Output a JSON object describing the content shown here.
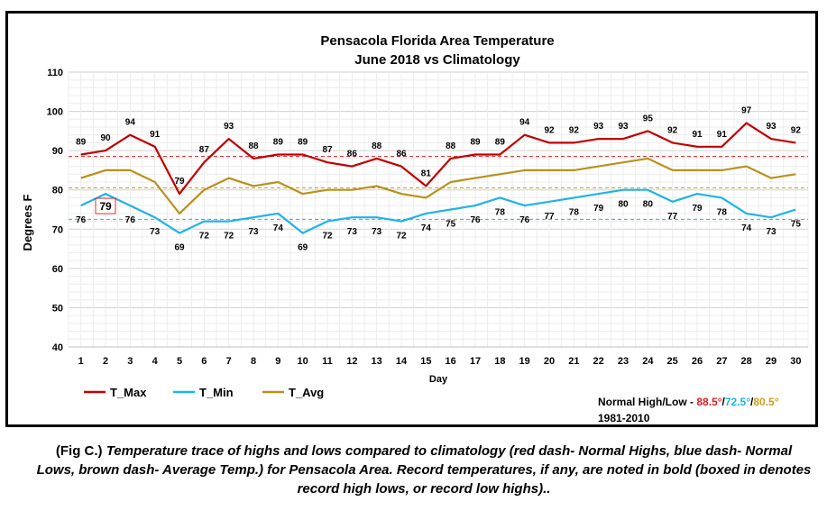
{
  "chart_data": {
    "type": "line",
    "title": [
      "Pensacola Florida Area Temperature",
      "June 2018 vs Climatology"
    ],
    "xlabel": "Day",
    "ylabel": "Degrees F",
    "ylim": [
      40,
      110
    ],
    "yticks": [
      40,
      50,
      60,
      70,
      80,
      90,
      100,
      110
    ],
    "x": [
      1,
      2,
      3,
      4,
      5,
      6,
      7,
      8,
      9,
      10,
      11,
      12,
      13,
      14,
      15,
      16,
      17,
      18,
      19,
      20,
      21,
      22,
      23,
      24,
      25,
      26,
      27,
      28,
      29,
      30
    ],
    "series": [
      {
        "name": "T_Max",
        "color": "#c00000",
        "values": [
          89,
          90,
          94,
          91,
          79,
          87,
          93,
          88,
          89,
          89,
          87,
          86,
          88,
          86,
          81,
          88,
          89,
          89,
          94,
          92,
          92,
          93,
          93,
          95,
          92,
          91,
          91,
          97,
          93,
          92
        ]
      },
      {
        "name": "T_Min",
        "color": "#1fb3e8",
        "values": [
          76,
          79,
          76,
          73,
          69,
          72,
          72,
          73,
          74,
          69,
          72,
          73,
          73,
          72,
          74,
          75,
          76,
          78,
          76,
          77,
          78,
          79,
          80,
          80,
          77,
          79,
          78,
          74,
          73,
          75
        ]
      },
      {
        "name": "T_Avg",
        "color": "#b8921c",
        "values": [
          83,
          85,
          85,
          82,
          74,
          80,
          83,
          81,
          82,
          79,
          80,
          80,
          81,
          79,
          78,
          82,
          83,
          84,
          85,
          85,
          85,
          86,
          87,
          88,
          85,
          85,
          85,
          86,
          83,
          84
        ]
      }
    ],
    "reference_lines": [
      {
        "value": 88.5,
        "color": "#e02020"
      },
      {
        "value": 72.5,
        "color": "#1fb3e8"
      },
      {
        "value": 80.5,
        "color": "#c8a020"
      }
    ],
    "record_boxed": [
      {
        "series": "T_Min",
        "day": 2
      }
    ],
    "legend_position": "bottom-left",
    "grid": true,
    "normals": {
      "label": "Normal High/Low - ",
      "high": "88.5°",
      "sep1": "/",
      "low": "72.5°",
      "sep2": "/",
      "avg": "80.5°",
      "period": "1981-2010"
    }
  },
  "caption": {
    "fig": "(Fig C.)",
    "text": " Temperature trace of highs and lows compared to climatology (red dash- Normal Highs, blue dash- Normal Lows, brown dash- Average Temp.) for Pensacola Area. Record temperatures, if any, are noted in bold (boxed in denotes record high lows, or record low highs).."
  }
}
